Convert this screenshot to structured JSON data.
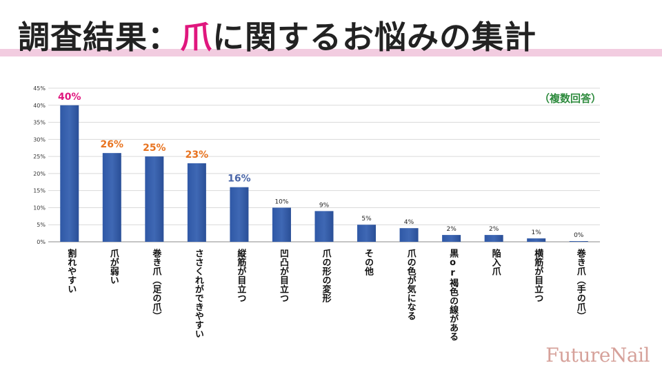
{
  "title": {
    "prefix": "調査結果：",
    "accent": "爪",
    "suffix": "に関するお悩みの集計"
  },
  "note": "（複数回答）",
  "brand": "FutureNail",
  "colors": {
    "bar": "#3f68b4",
    "accent_pink": "#e0177e",
    "accent_orange": "#e8731f",
    "accent_blue": "#4a66a8",
    "note_green": "#2e8b3e"
  },
  "chart_data": {
    "type": "bar",
    "categories": [
      "割れやすい",
      "爪が弱い",
      "巻き爪（足の爪）",
      "ささくれができやすい",
      "縦筋が目立つ",
      "凹凸が目立つ",
      "爪の形の変形",
      "その他",
      "爪の色が気になる",
      "黒or褐色の線がある",
      "陥入爪",
      "横筋が目立つ",
      "巻き爪（手の爪）"
    ],
    "values": [
      40,
      26,
      25,
      23,
      16,
      10,
      9,
      5,
      4,
      2,
      2,
      1,
      0
    ],
    "value_labels": [
      "40%",
      "26%",
      "25%",
      "23%",
      "16%",
      "10%",
      "9%",
      "5%",
      "4%",
      "2%",
      "2%",
      "1%",
      "0%"
    ],
    "label_colors": [
      "#e0177e",
      "#e8731f",
      "#e8731f",
      "#e8731f",
      "#4a66a8",
      "#222222",
      "#222222",
      "#222222",
      "#222222",
      "#222222",
      "#222222",
      "#222222",
      "#222222"
    ],
    "ylim": [
      0,
      45
    ],
    "yticks": [
      0,
      5,
      10,
      15,
      20,
      25,
      30,
      35,
      40,
      45
    ],
    "ytick_labels": [
      "0%",
      "5%",
      "10%",
      "15%",
      "20%",
      "25%",
      "30%",
      "35%",
      "40%",
      "45%"
    ],
    "grid": true
  }
}
